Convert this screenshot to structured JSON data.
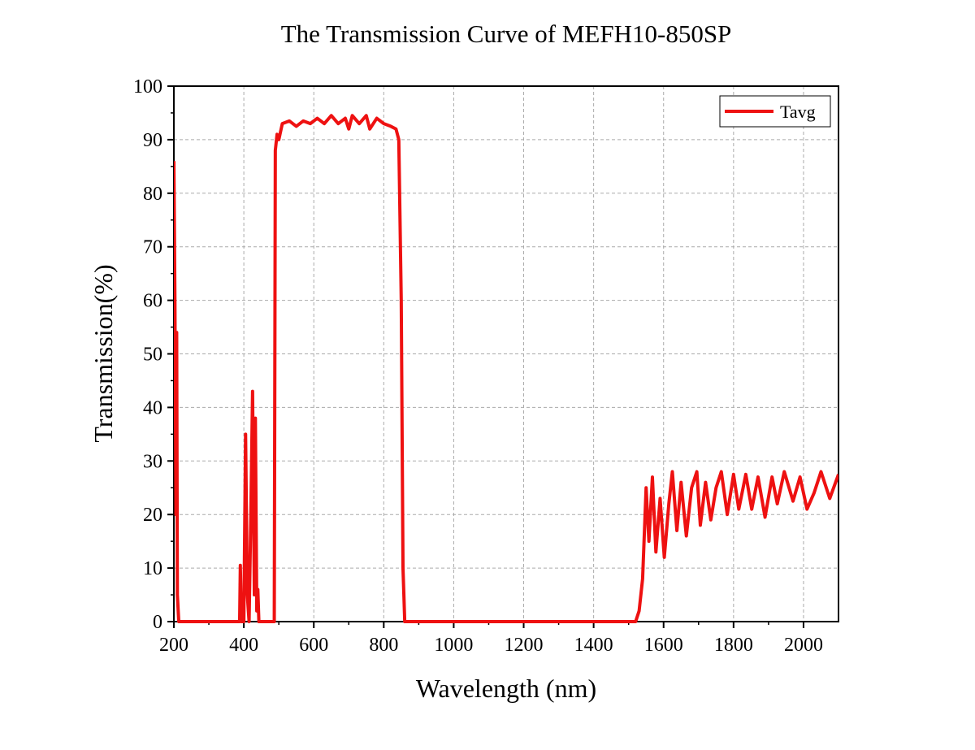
{
  "chart_data": {
    "type": "line",
    "title": "The Transmission Curve of MEFH10-850SP",
    "x_label": "Wavelength (nm)",
    "y_label": "Transmission(%)",
    "xlim": [
      200,
      2100
    ],
    "ylim": [
      0,
      100
    ],
    "xticks": [
      200,
      400,
      600,
      800,
      1000,
      1200,
      1400,
      1600,
      1800,
      2000
    ],
    "yticks": [
      0,
      10,
      20,
      30,
      40,
      50,
      60,
      70,
      80,
      90,
      100
    ],
    "grid": true,
    "legend": "upper right",
    "x": [
      200,
      203,
      206,
      208,
      210,
      214,
      388,
      390,
      393,
      400,
      405,
      410,
      415,
      420,
      425,
      430,
      433,
      437,
      440,
      443,
      487,
      490,
      495,
      500,
      510,
      530,
      550,
      570,
      590,
      610,
      630,
      650,
      670,
      690,
      700,
      710,
      730,
      750,
      760,
      780,
      800,
      820,
      835,
      843,
      850,
      855,
      860,
      1520,
      1530,
      1540,
      1550,
      1558,
      1568,
      1578,
      1590,
      1602,
      1615,
      1625,
      1638,
      1650,
      1665,
      1680,
      1695,
      1705,
      1720,
      1735,
      1750,
      1765,
      1782,
      1800,
      1815,
      1835,
      1852,
      1870,
      1890,
      1910,
      1925,
      1945,
      1970,
      1990,
      2010,
      2030,
      2050,
      2075,
      2100
    ],
    "series": [
      {
        "name": "Tavg",
        "color": "#ee1111",
        "values": [
          86,
          60,
          20,
          54,
          5,
          0,
          0,
          10.5,
          0,
          0,
          35,
          5,
          0,
          20,
          43,
          5,
          38,
          2,
          6,
          0,
          0,
          88,
          91,
          90,
          93,
          93.5,
          92.5,
          93.5,
          93,
          94,
          93,
          94.5,
          93,
          94,
          92,
          94.5,
          93,
          94.5,
          92,
          94,
          93,
          92.5,
          92,
          90,
          60,
          10,
          0,
          0,
          2,
          8,
          25,
          15,
          27,
          13,
          23,
          12,
          22,
          28,
          17,
          26,
          16,
          25,
          28,
          18,
          26,
          19,
          25,
          28,
          20,
          27.5,
          21,
          27.5,
          21,
          27,
          19.5,
          27,
          22,
          28,
          22.5,
          27,
          21,
          24,
          28,
          23,
          27.5
        ]
      }
    ]
  }
}
